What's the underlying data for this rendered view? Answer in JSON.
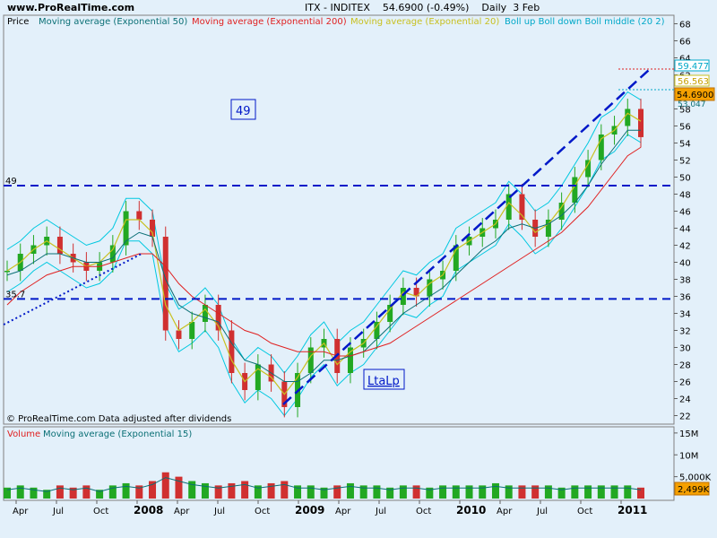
{
  "header": {
    "site": "www.ProRealTime.com",
    "symbol": "ITX - INDITEX",
    "last": "54.6900",
    "change": "(-0.49%)",
    "period": "Daily",
    "date": "3 Feb"
  },
  "price_panel": {
    "legend": {
      "price": "Price",
      "ema50": "Moving average (Exponential 50)",
      "ema200": "Moving average (Exponential 200)",
      "ema20": "Moving average (Exponential 20)",
      "boll": "Boll up Boll down Boll middle (20 2)"
    },
    "footer_note": "© ProRealTime.com  Data adjusted after dividends",
    "box_49": "49",
    "box_ltalp": "LtaLp",
    "line_49_label": "49",
    "line_357_label": "35.7",
    "right_tags": {
      "bb_up": "59.477",
      "ema20": "56.563",
      "last": "54.6900",
      "bb_low_partial": "53.047"
    }
  },
  "volume_panel": {
    "legend": {
      "volume": "Volume",
      "ma15": "Moving average (Exponential 15)"
    },
    "axis_labels": [
      "15M",
      "10M",
      "5,000K"
    ],
    "last_tag": "2,499K"
  },
  "x_axis": {
    "labels": [
      "Apr",
      "Jul",
      "Oct",
      "2008",
      "Apr",
      "Jul",
      "Oct",
      "2009",
      "Apr",
      "Jul",
      "Oct",
      "2010",
      "Apr",
      "Jul",
      "Oct",
      "2011"
    ]
  },
  "colors": {
    "background": "#e3f0fa",
    "ema50": "#0a6f75",
    "ema200": "#e02020",
    "ema20": "#c8c020",
    "bollinger": "#00c8e0",
    "up_candle": "#22a822",
    "down_candle": "#d03030",
    "trend_line": "#0018c8",
    "last_tag": "#f5a000"
  },
  "chart_data": {
    "type": "line",
    "title": "ITX - INDITEX",
    "ylabel": "Price",
    "ylim": [
      21,
      69
    ],
    "yticks": [
      22,
      24,
      26,
      28,
      30,
      32,
      34,
      36,
      38,
      40,
      42,
      44,
      46,
      48,
      50,
      52,
      54,
      56,
      58,
      60,
      62,
      64,
      66,
      68
    ],
    "x": [
      "2007-02",
      "2007-03",
      "2007-04",
      "2007-05",
      "2007-06",
      "2007-07",
      "2007-08",
      "2007-09",
      "2007-10",
      "2007-11",
      "2007-12",
      "2008-01",
      "2008-02",
      "2008-03",
      "2008-04",
      "2008-05",
      "2008-06",
      "2008-07",
      "2008-08",
      "2008-09",
      "2008-10",
      "2008-11",
      "2008-12",
      "2009-01",
      "2009-02",
      "2009-03",
      "2009-04",
      "2009-05",
      "2009-06",
      "2009-07",
      "2009-08",
      "2009-09",
      "2009-10",
      "2009-11",
      "2009-12",
      "2010-01",
      "2010-02",
      "2010-03",
      "2010-04",
      "2010-05",
      "2010-06",
      "2010-07",
      "2010-08",
      "2010-09",
      "2010-10",
      "2010-11",
      "2010-12",
      "2011-01",
      "2011-02"
    ],
    "series": [
      {
        "name": "Price",
        "values": [
          39,
          41,
          42,
          43,
          41,
          40,
          39,
          40,
          42,
          46,
          45,
          43,
          32,
          31,
          33,
          35,
          32,
          27,
          25,
          28,
          26,
          23,
          27,
          30,
          31,
          27,
          30,
          31,
          33,
          35,
          37,
          36,
          38,
          39,
          42,
          43,
          44,
          45,
          48,
          45,
          43,
          45,
          47,
          50,
          52,
          55,
          56,
          58,
          54.69
        ]
      },
      {
        "name": "Moving average (Exponential 20)",
        "values": [
          39,
          40,
          41.5,
          42.5,
          41.5,
          40.5,
          39.5,
          40,
          41.5,
          45,
          45,
          43.5,
          35,
          32,
          33,
          34.5,
          32.5,
          28.5,
          26,
          27.5,
          26.5,
          24.5,
          26.5,
          29,
          30.5,
          28,
          29.5,
          30.5,
          32.5,
          34.5,
          36.5,
          36,
          37.5,
          38.5,
          41.5,
          42.5,
          43.5,
          44.5,
          47,
          45.5,
          43.5,
          44.5,
          46.5,
          49,
          51.5,
          54.5,
          55.5,
          57.5,
          56.56
        ]
      },
      {
        "name": "Moving average (Exponential 50)",
        "values": [
          38.5,
          39,
          40,
          41,
          41,
          40.5,
          40,
          40,
          40.5,
          42.5,
          43.5,
          43,
          38,
          35,
          34,
          33.5,
          33,
          30.5,
          28.5,
          28,
          27,
          26,
          26,
          27,
          28.5,
          28.5,
          29,
          29.5,
          31,
          32.5,
          34,
          35,
          36,
          37,
          38.5,
          40,
          41.5,
          42.5,
          44,
          44.5,
          44,
          44.5,
          45.5,
          47,
          49,
          51.5,
          53.5,
          55.5,
          55.5
        ]
      },
      {
        "name": "Moving average (Exponential 200)",
        "values": [
          35,
          36.5,
          37.5,
          38.5,
          39,
          39.5,
          39.5,
          39.5,
          40,
          40.5,
          41,
          41,
          39.5,
          37.5,
          36,
          35,
          34,
          33,
          32,
          31.5,
          30.5,
          30,
          29.5,
          29.5,
          29.5,
          29,
          29,
          29.5,
          30,
          30.5,
          31.5,
          32.5,
          33.5,
          34.5,
          35.5,
          36.5,
          37.5,
          38.5,
          39.5,
          40.5,
          41.5,
          42.5,
          43.5,
          45,
          46.5,
          48.5,
          50.5,
          52.5,
          53.5
        ]
      }
    ],
    "horizontal_lines": [
      {
        "label": "49",
        "value": 49
      },
      {
        "label": "35.7",
        "value": 35.7
      }
    ],
    "annotations": [
      "49",
      "LtaLp"
    ],
    "volume": {
      "name": "Volume",
      "ylim": [
        0,
        16
      ],
      "unit": "M",
      "values": [
        2.5,
        3,
        2.5,
        2,
        3,
        2.5,
        3,
        2,
        3,
        3.5,
        3,
        4,
        6,
        5,
        4,
        3.5,
        3,
        3.5,
        4,
        3,
        3.5,
        4,
        3,
        3,
        2.5,
        3,
        3.5,
        3,
        3,
        2.5,
        3,
        3,
        2.5,
        3,
        3,
        3,
        3,
        3.5,
        3,
        3,
        3,
        3,
        2.5,
        3,
        3,
        3,
        3,
        3,
        2.5
      ]
    }
  }
}
